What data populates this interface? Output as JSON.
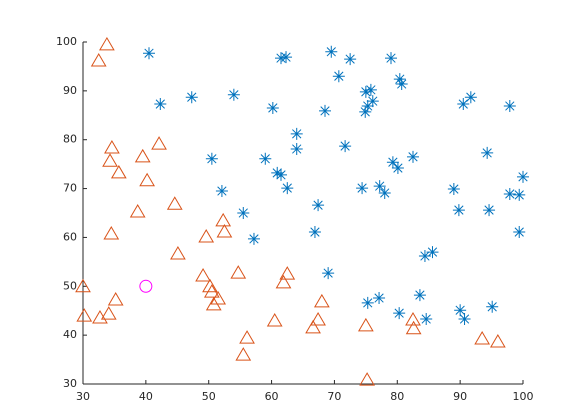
{
  "chart_data": {
    "type": "scatter",
    "xlim": [
      30,
      100
    ],
    "ylim": [
      30,
      100
    ],
    "xticks": [
      30,
      40,
      50,
      60,
      70,
      80,
      90,
      100
    ],
    "yticks": [
      30,
      40,
      50,
      60,
      70,
      80,
      90,
      100
    ],
    "series": [
      {
        "color": "#0072BD",
        "marker": "asterisk",
        "x": [
          40.5,
          42.3,
          47.3,
          54.0,
          50.5,
          52.1,
          55.5,
          57.2,
          59.0,
          60.2,
          61.5,
          62.3,
          60.9,
          61.5,
          62.5,
          64.0,
          64.0,
          67.4,
          66.9,
          68.5,
          69.5,
          70.7,
          72.5,
          71.7,
          74.4,
          74.9,
          75.0,
          75.8,
          76.1,
          75.3,
          77.2,
          78.0,
          79.0,
          79.3,
          80.1,
          80.4,
          80.7,
          82.5,
          69.0,
          75.3,
          77.1,
          80.3,
          83.6,
          84.6,
          84.4,
          85.6,
          89.0,
          89.8,
          90.5,
          91.7,
          94.3,
          94.6,
          97.9,
          97.9,
          99.4,
          100.0,
          99.4,
          90.0,
          90.7,
          95.1
        ],
        "y": [
          97.7,
          87.3,
          88.7,
          89.2,
          76.1,
          69.5,
          65.0,
          59.7,
          76.1,
          86.5,
          96.7,
          96.9,
          73.2,
          72.8,
          70.1,
          81.2,
          78.1,
          66.6,
          61.1,
          85.9,
          98.0,
          93.0,
          96.5,
          78.7,
          70.1,
          85.7,
          89.8,
          90.2,
          87.9,
          86.9,
          70.5,
          69.1,
          96.7,
          75.4,
          74.2,
          92.4,
          91.4,
          76.5,
          52.7,
          46.6,
          47.6,
          44.5,
          48.2,
          43.3,
          56.2,
          57.0,
          69.9,
          65.6,
          87.3,
          88.7,
          77.3,
          65.6,
          86.9,
          68.9,
          68.7,
          72.4,
          61.1,
          45.1,
          43.3,
          45.8
        ]
      },
      {
        "color": "#D95319",
        "marker": "triangle",
        "x": [
          33.8,
          32.5,
          34.6,
          34.3,
          35.7,
          39.5,
          42.1,
          40.2,
          38.7,
          44.6,
          34.5,
          45.1,
          49.6,
          52.3,
          52.5,
          30.0,
          30.2,
          32.7,
          34.1,
          35.2,
          49.1,
          50.2,
          50.5,
          51.5,
          50.8,
          54.7,
          56.1,
          55.5,
          60.5,
          61.9,
          62.5,
          66.6,
          67.4,
          68.0,
          75.0,
          75.2,
          82.5,
          82.6,
          93.5,
          96.0
        ],
        "y": [
          99.4,
          96.1,
          78.3,
          75.6,
          73.2,
          76.5,
          79.1,
          71.6,
          65.2,
          66.8,
          60.7,
          56.6,
          60.1,
          63.4,
          61.1,
          49.9,
          43.9,
          43.5,
          44.3,
          47.2,
          52.1,
          49.9,
          48.8,
          47.4,
          46.2,
          52.7,
          39.4,
          35.9,
          42.9,
          50.7,
          52.5,
          41.5,
          43.1,
          46.8,
          41.9,
          30.8,
          43.1,
          41.3,
          39.2,
          38.6
        ]
      },
      {
        "color": "#FF00FF",
        "marker": "circle",
        "x": [
          40
        ],
        "y": [
          50
        ]
      }
    ]
  }
}
